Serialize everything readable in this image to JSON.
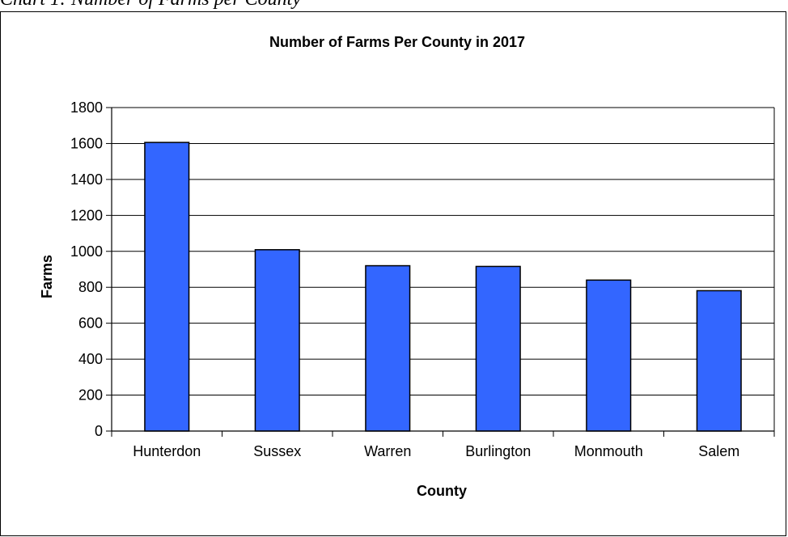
{
  "caption": "Chart 1: Number of Farms per County",
  "chart_data": {
    "type": "bar",
    "title": "Number of Farms Per County in 2017",
    "xlabel": "County",
    "ylabel": "Farms",
    "categories": [
      "Hunterdon",
      "Sussex",
      "Warren",
      "Burlington",
      "Monmouth",
      "Salem"
    ],
    "values": [
      1606,
      1009,
      920,
      916,
      840,
      781
    ],
    "ylim": [
      0,
      1800
    ],
    "yticks": [
      0,
      200,
      400,
      600,
      800,
      1000,
      1200,
      1400,
      1600,
      1800
    ],
    "grid": true,
    "legend": "none",
    "bar_color": "#3366ff"
  }
}
